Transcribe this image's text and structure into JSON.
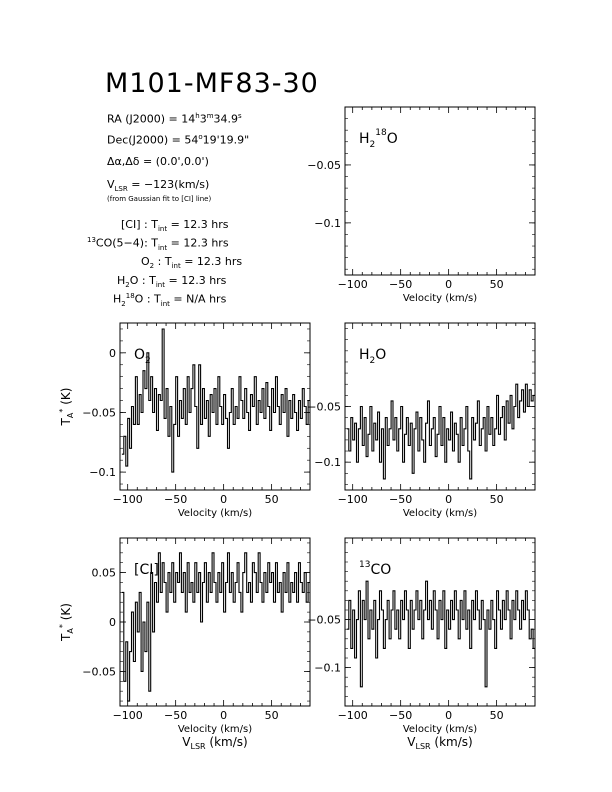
{
  "title": "M101-MF83-30",
  "info": {
    "ra_label": "RA (J2000) = ",
    "ra_h": "14",
    "ra_m": "3",
    "ra_s": "34.9",
    "dec_label": "Dec(J2000) = ",
    "dec_d": "54",
    "dec_rest": "19'19.9\"",
    "offset_label": "Δα,Δδ = ",
    "offset_value": "(0.0',0.0')",
    "vlsr_label": "V",
    "vlsr_sub": "LSR",
    "vlsr_value": " = −123(km/s)",
    "vlsr_note": "(from Gaussian fit to [CI] line)",
    "tint_sub": "int",
    "lines": [
      {
        "name": "[CI]",
        "value": "12.3 hrs"
      },
      {
        "name_sup": "13",
        "name": "CO(5−4)",
        "value": "12.3 hrs"
      },
      {
        "name": "O",
        "name_sub": "2",
        "value": "12.3 hrs"
      },
      {
        "name": "H",
        "name_sub": "2",
        "name_tail": "O",
        "value": "12.3 hrs"
      },
      {
        "name": "H",
        "name_sub": "2",
        "name_sup": "18",
        "name_tail": "O",
        "value": "N/A hrs"
      }
    ]
  },
  "labels": {
    "xlabel": "Velocity (km/s)",
    "vlsr_x": "V",
    "vlsr_x_sub": "LSR",
    "vlsr_x_tail": " (km/s)",
    "ylabel_T": "T",
    "ylabel_sub": "A",
    "ylabel_sup": "*",
    "ylabel_tail": " (K)"
  },
  "chart_data": [
    {
      "type": "line",
      "name": "H2 18O",
      "label": "H",
      "label_sub": "2",
      "label_sup": "18",
      "label_tail": "O",
      "xlim": [
        -108,
        90
      ],
      "ylim": [
        -0.145,
        0.0
      ],
      "xticks": [
        -100,
        -50,
        0,
        50
      ],
      "yticks": [
        -0.05,
        -0.1
      ],
      "ytick_labels": [
        "−0.05",
        "−0.1"
      ],
      "yaxis_label": false,
      "vlsr_label": false,
      "x": [],
      "y": []
    },
    {
      "type": "line",
      "name": "O2",
      "label": "O",
      "label_sub": "2",
      "xlim": [
        -108,
        90
      ],
      "ylim": [
        -0.115,
        0.025
      ],
      "xticks": [
        -100,
        -50,
        0,
        50
      ],
      "yticks": [
        0,
        -0.05,
        -0.1
      ],
      "ytick_labels": [
        "0",
        "−0.05",
        "−0.1"
      ],
      "yaxis_label": true,
      "vlsr_label": false,
      "x": [
        -105,
        -103,
        -101,
        -99,
        -97,
        -95,
        -93,
        -91,
        -89,
        -87,
        -85,
        -83,
        -81,
        -79,
        -77,
        -75,
        -73,
        -71,
        -69,
        -67,
        -65,
        -63,
        -61,
        -59,
        -57,
        -55,
        -53,
        -51,
        -49,
        -47,
        -45,
        -43,
        -41,
        -39,
        -37,
        -35,
        -33,
        -31,
        -29,
        -27,
        -25,
        -23,
        -21,
        -19,
        -17,
        -15,
        -13,
        -11,
        -9,
        -7,
        -5,
        -3,
        -1,
        1,
        3,
        5,
        7,
        9,
        11,
        13,
        15,
        17,
        19,
        21,
        23,
        25,
        27,
        29,
        31,
        33,
        35,
        37,
        39,
        41,
        43,
        45,
        47,
        49,
        51,
        53,
        55,
        57,
        59,
        61,
        63,
        65,
        67,
        69,
        71,
        73,
        75,
        77,
        79,
        81,
        83,
        85,
        87,
        89
      ],
      "y": [
        -0.085,
        -0.07,
        -0.095,
        -0.055,
        -0.08,
        -0.045,
        -0.06,
        -0.02,
        -0.06,
        -0.035,
        -0.05,
        -0.015,
        -0.03,
        0.0,
        -0.04,
        -0.02,
        -0.05,
        -0.03,
        -0.065,
        -0.035,
        -0.04,
        0.02,
        -0.055,
        -0.03,
        -0.07,
        -0.045,
        -0.1,
        -0.06,
        -0.02,
        -0.07,
        -0.04,
        -0.055,
        -0.03,
        -0.06,
        -0.02,
        -0.05,
        -0.03,
        -0.01,
        -0.045,
        -0.08,
        -0.01,
        -0.06,
        -0.03,
        -0.055,
        -0.04,
        -0.07,
        -0.035,
        -0.05,
        -0.03,
        -0.06,
        -0.02,
        -0.045,
        -0.06,
        -0.035,
        -0.055,
        -0.08,
        -0.05,
        -0.03,
        -0.06,
        -0.045,
        -0.055,
        -0.02,
        -0.04,
        -0.055,
        -0.03,
        -0.05,
        -0.065,
        -0.035,
        -0.045,
        -0.02,
        -0.06,
        -0.04,
        -0.05,
        -0.03,
        -0.055,
        -0.025,
        -0.045,
        -0.065,
        -0.03,
        -0.05,
        -0.02,
        -0.045,
        -0.06,
        -0.035,
        -0.05,
        -0.03,
        -0.07,
        -0.04,
        -0.055,
        -0.035,
        -0.05,
        -0.065,
        -0.04,
        -0.055,
        -0.03,
        -0.045,
        -0.06,
        -0.04
      ]
    },
    {
      "type": "line",
      "name": "H2O",
      "label": "H",
      "label_sub": "2",
      "label_tail": "O",
      "xlim": [
        -108,
        90
      ],
      "ylim": [
        -0.125,
        0.025
      ],
      "xticks": [
        -100,
        -50,
        0,
        50
      ],
      "yticks": [
        -0.05,
        -0.1
      ],
      "ytick_labels": [
        "−0.05",
        "−0.1"
      ],
      "yaxis_label": false,
      "vlsr_label": false,
      "x": [
        -105,
        -103,
        -101,
        -99,
        -97,
        -95,
        -93,
        -91,
        -89,
        -87,
        -85,
        -83,
        -81,
        -79,
        -77,
        -75,
        -73,
        -71,
        -69,
        -67,
        -65,
        -63,
        -61,
        -59,
        -57,
        -55,
        -53,
        -51,
        -49,
        -47,
        -45,
        -43,
        -41,
        -39,
        -37,
        -35,
        -33,
        -31,
        -29,
        -27,
        -25,
        -23,
        -21,
        -19,
        -17,
        -15,
        -13,
        -11,
        -9,
        -7,
        -5,
        -3,
        -1,
        1,
        3,
        5,
        7,
        9,
        11,
        13,
        15,
        17,
        19,
        21,
        23,
        25,
        27,
        29,
        31,
        33,
        35,
        37,
        39,
        41,
        43,
        45,
        47,
        49,
        51,
        53,
        55,
        57,
        59,
        61,
        63,
        65,
        67,
        69,
        71,
        73,
        75,
        77,
        79,
        81,
        83,
        85,
        87,
        89
      ],
      "y": [
        -0.07,
        -0.09,
        -0.06,
        -0.08,
        -0.065,
        -0.1,
        -0.07,
        -0.05,
        -0.085,
        -0.06,
        -0.095,
        -0.075,
        -0.05,
        -0.09,
        -0.065,
        -0.08,
        -0.055,
        -0.1,
        -0.07,
        -0.115,
        -0.06,
        -0.085,
        -0.07,
        -0.045,
        -0.08,
        -0.06,
        -0.09,
        -0.07,
        -0.05,
        -0.1,
        -0.075,
        -0.06,
        -0.085,
        -0.065,
        -0.11,
        -0.07,
        -0.055,
        -0.09,
        -0.06,
        -0.08,
        -0.1,
        -0.065,
        -0.045,
        -0.085,
        -0.07,
        -0.06,
        -0.095,
        -0.075,
        -0.05,
        -0.085,
        -0.06,
        -0.1,
        -0.07,
        -0.08,
        -0.055,
        -0.09,
        -0.065,
        -0.075,
        -0.1,
        -0.06,
        -0.085,
        -0.07,
        -0.05,
        -0.09,
        -0.115,
        -0.06,
        -0.08,
        -0.065,
        -0.045,
        -0.085,
        -0.07,
        -0.06,
        -0.09,
        -0.05,
        -0.075,
        -0.06,
        -0.085,
        -0.07,
        -0.04,
        -0.075,
        -0.06,
        -0.05,
        -0.08,
        -0.045,
        -0.065,
        -0.04,
        -0.07,
        -0.05,
        -0.03,
        -0.06,
        -0.045,
        -0.035,
        -0.055,
        -0.03,
        -0.05,
        -0.035,
        -0.045,
        -0.04
      ]
    },
    {
      "type": "line",
      "name": "[CI]",
      "label": "[CI]",
      "xlim": [
        -108,
        90
      ],
      "ylim": [
        -0.085,
        0.085
      ],
      "xticks": [
        -100,
        -50,
        0,
        50
      ],
      "yticks": [
        0.05,
        0,
        -0.05
      ],
      "ytick_labels": [
        "0.05",
        "0",
        "−0.05"
      ],
      "yaxis_label": true,
      "vlsr_label": true,
      "x": [
        -105,
        -103,
        -101,
        -99,
        -97,
        -95,
        -93,
        -91,
        -89,
        -87,
        -85,
        -83,
        -81,
        -79,
        -77,
        -75,
        -73,
        -71,
        -69,
        -67,
        -65,
        -63,
        -61,
        -59,
        -57,
        -55,
        -53,
        -51,
        -49,
        -47,
        -45,
        -43,
        -41,
        -39,
        -37,
        -35,
        -33,
        -31,
        -29,
        -27,
        -25,
        -23,
        -21,
        -19,
        -17,
        -15,
        -13,
        -11,
        -9,
        -7,
        -5,
        -3,
        -1,
        1,
        3,
        5,
        7,
        9,
        11,
        13,
        15,
        17,
        19,
        21,
        23,
        25,
        27,
        29,
        31,
        33,
        35,
        37,
        39,
        41,
        43,
        45,
        47,
        49,
        51,
        53,
        55,
        57,
        59,
        61,
        63,
        65,
        67,
        69,
        71,
        73,
        75,
        77,
        79,
        81,
        83,
        85,
        87,
        89
      ],
      "y": [
        0.03,
        -0.06,
        -0.02,
        -0.08,
        -0.03,
        0.01,
        -0.04,
        0.02,
        -0.01,
        0.03,
        -0.05,
        0.0,
        -0.03,
        0.02,
        -0.07,
        0.05,
        -0.01,
        0.04,
        0.02,
        0.07,
        0.03,
        0.06,
        0.04,
        0.01,
        0.05,
        0.03,
        0.06,
        0.02,
        0.05,
        0.04,
        0.07,
        0.03,
        0.05,
        0.01,
        0.06,
        0.03,
        0.04,
        0.02,
        0.06,
        0.03,
        0.05,
        0.0,
        0.04,
        0.06,
        0.02,
        0.05,
        0.03,
        0.07,
        0.04,
        0.02,
        0.05,
        0.03,
        0.06,
        0.01,
        0.04,
        0.07,
        0.03,
        0.05,
        0.02,
        0.04,
        0.06,
        0.03,
        0.01,
        0.05,
        0.07,
        0.03,
        0.04,
        0.02,
        0.06,
        0.05,
        0.03,
        0.07,
        0.04,
        0.02,
        0.05,
        0.03,
        0.06,
        0.04,
        0.05,
        0.02,
        0.06,
        0.03,
        0.04,
        0.01,
        0.05,
        0.03,
        0.06,
        0.02,
        0.04,
        0.03,
        0.05,
        0.02,
        0.06,
        0.04,
        0.03,
        0.05,
        0.02,
        0.04
      ]
    },
    {
      "type": "line",
      "name": "13CO",
      "label": "CO",
      "label_sup": "13",
      "xlim": [
        -108,
        90
      ],
      "ylim": [
        -0.14,
        0.035
      ],
      "xticks": [
        -100,
        -50,
        0,
        50
      ],
      "yticks": [
        -0.05,
        -0.1
      ],
      "ytick_labels": [
        "−0.05",
        "−0.1"
      ],
      "yaxis_label": false,
      "vlsr_label": true,
      "x": [
        -105,
        -103,
        -101,
        -99,
        -97,
        -95,
        -93,
        -91,
        -89,
        -87,
        -85,
        -83,
        -81,
        -79,
        -77,
        -75,
        -73,
        -71,
        -69,
        -67,
        -65,
        -63,
        -61,
        -59,
        -57,
        -55,
        -53,
        -51,
        -49,
        -47,
        -45,
        -43,
        -41,
        -39,
        -37,
        -35,
        -33,
        -31,
        -29,
        -27,
        -25,
        -23,
        -21,
        -19,
        -17,
        -15,
        -13,
        -11,
        -9,
        -7,
        -5,
        -3,
        -1,
        1,
        3,
        5,
        7,
        9,
        11,
        13,
        15,
        17,
        19,
        21,
        23,
        25,
        27,
        29,
        31,
        33,
        35,
        37,
        39,
        41,
        43,
        45,
        47,
        49,
        51,
        53,
        55,
        57,
        59,
        61,
        63,
        65,
        67,
        69,
        71,
        73,
        75,
        77,
        79,
        81,
        83,
        85,
        87,
        89
      ],
      "y": [
        -0.06,
        -0.03,
        -0.08,
        -0.04,
        -0.09,
        -0.05,
        -0.02,
        -0.12,
        -0.03,
        -0.05,
        -0.01,
        -0.07,
        -0.04,
        -0.06,
        -0.03,
        -0.09,
        -0.05,
        -0.02,
        -0.04,
        -0.08,
        -0.05,
        -0.03,
        -0.07,
        -0.04,
        -0.02,
        -0.06,
        -0.04,
        -0.07,
        -0.03,
        -0.05,
        -0.02,
        -0.04,
        -0.08,
        -0.03,
        -0.06,
        -0.04,
        -0.02,
        -0.05,
        -0.03,
        -0.07,
        -0.04,
        -0.01,
        -0.05,
        -0.03,
        -0.06,
        -0.02,
        -0.04,
        -0.07,
        -0.03,
        -0.05,
        -0.02,
        -0.08,
        -0.04,
        -0.06,
        -0.03,
        -0.05,
        -0.02,
        -0.04,
        -0.07,
        -0.03,
        -0.05,
        -0.02,
        -0.06,
        -0.04,
        -0.08,
        -0.03,
        -0.05,
        -0.02,
        -0.04,
        -0.06,
        -0.03,
        -0.05,
        -0.12,
        -0.04,
        -0.06,
        -0.03,
        -0.05,
        -0.08,
        -0.02,
        -0.04,
        -0.06,
        -0.03,
        -0.05,
        -0.02,
        -0.04,
        -0.07,
        -0.03,
        -0.05,
        -0.02,
        -0.04,
        -0.06,
        -0.03,
        -0.05,
        -0.02,
        -0.04,
        -0.07,
        -0.06,
        -0.08
      ]
    }
  ]
}
